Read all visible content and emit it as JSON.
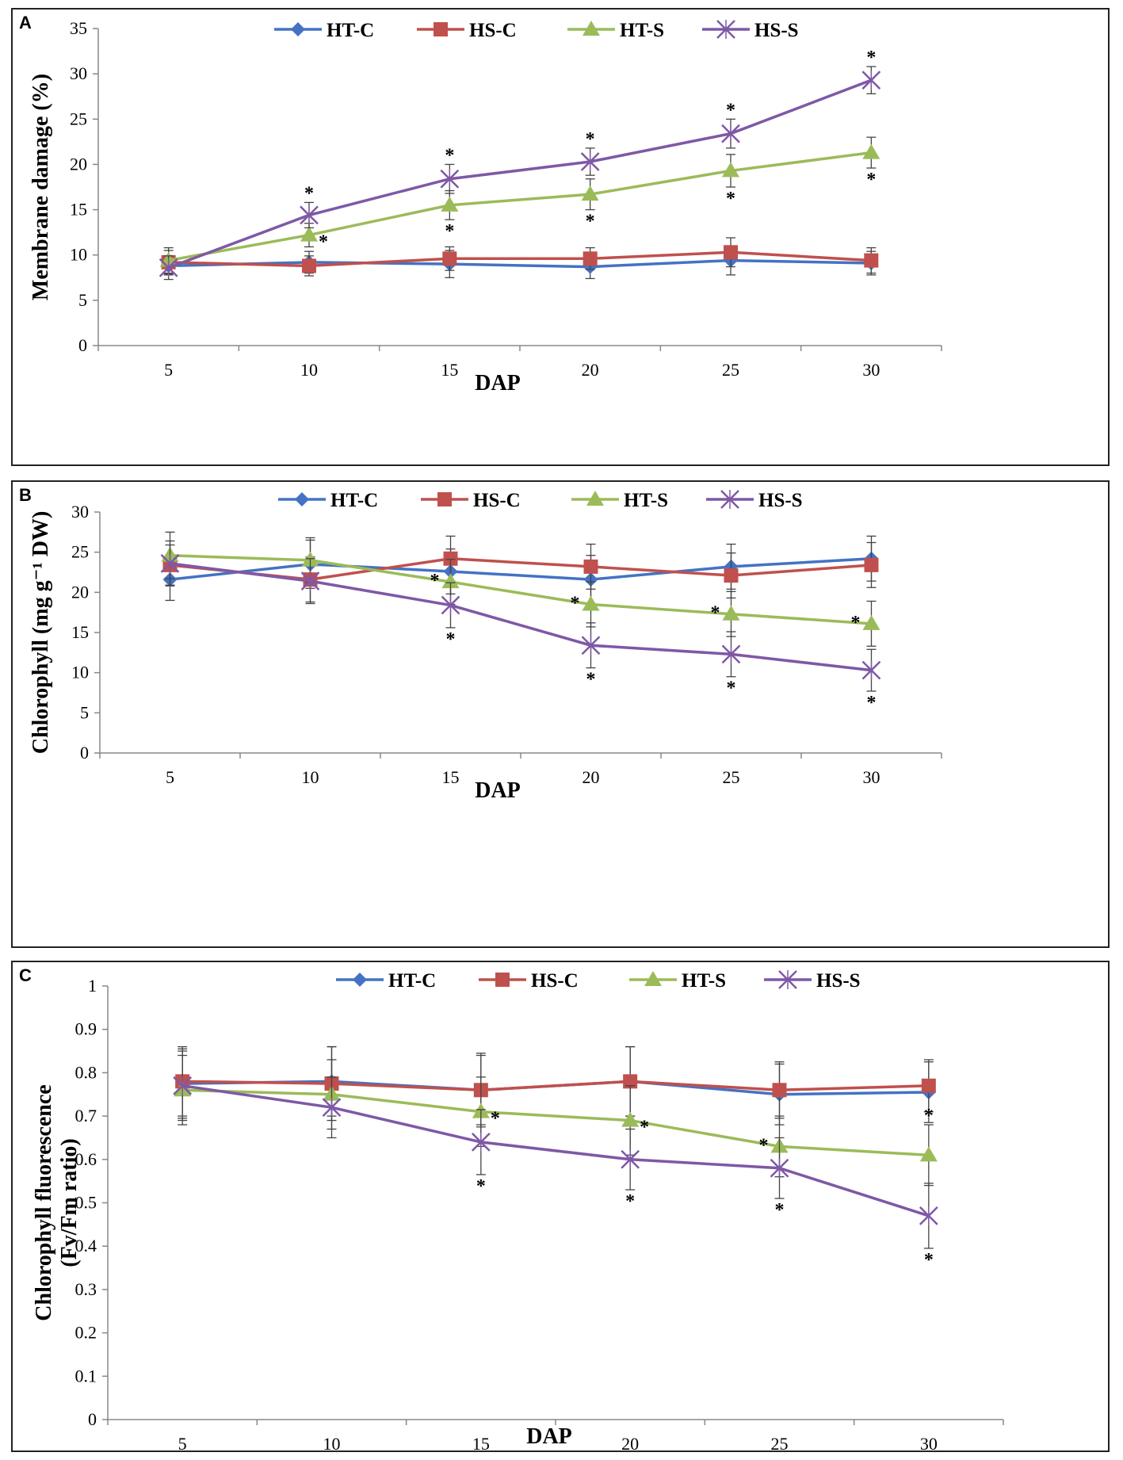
{
  "chart_data": [
    {
      "type": "line",
      "panel_label": "A",
      "ylabel": "Membrane damage (%)",
      "xlabel": "DAP",
      "categories": [
        "5",
        "10",
        "15",
        "20",
        "25",
        "30"
      ],
      "ylim": [
        0,
        35
      ],
      "yticks": [
        "0",
        "5",
        "10",
        "15",
        "20",
        "25",
        "30",
        "35"
      ],
      "legend_position": "top",
      "series": [
        {
          "name": "HT-C",
          "color": "#4472c4",
          "marker": "diamond",
          "values": [
            8.8,
            9.2,
            9.0,
            8.7,
            9.4,
            9.1
          ],
          "errors": [
            1.0,
            1.2,
            1.5,
            1.3,
            1.6,
            1.3
          ]
        },
        {
          "name": "HS-C",
          "color": "#c0504d",
          "marker": "square",
          "values": [
            9.2,
            8.8,
            9.6,
            9.6,
            10.3,
            9.4
          ],
          "errors": [
            1.3,
            1.1,
            1.3,
            1.2,
            1.6,
            1.4
          ]
        },
        {
          "name": "HT-S",
          "color": "#9bbb59",
          "marker": "triangle",
          "values": [
            9.4,
            12.2,
            15.5,
            16.7,
            19.3,
            21.3
          ],
          "errors": [
            1.4,
            1.3,
            1.6,
            1.7,
            1.8,
            1.7
          ]
        },
        {
          "name": "HS-S",
          "color": "#7f58a6",
          "marker": "x",
          "values": [
            8.6,
            14.4,
            18.4,
            20.3,
            23.4,
            29.3
          ],
          "errors": [
            1.3,
            1.4,
            1.6,
            1.5,
            1.6,
            1.5
          ]
        }
      ],
      "significance": [
        {
          "series": "HS-S",
          "index": 1,
          "pos": "above",
          "text": "*"
        },
        {
          "series": "HS-S",
          "index": 2,
          "pos": "above",
          "text": "*"
        },
        {
          "series": "HS-S",
          "index": 3,
          "pos": "above",
          "text": "*"
        },
        {
          "series": "HS-S",
          "index": 4,
          "pos": "above",
          "text": "*"
        },
        {
          "series": "HS-S",
          "index": 5,
          "pos": "above",
          "text": "*"
        },
        {
          "series": "HT-S",
          "index": 1,
          "pos": "right",
          "text": "*"
        },
        {
          "series": "HT-S",
          "index": 2,
          "pos": "below",
          "text": "*"
        },
        {
          "series": "HT-S",
          "index": 3,
          "pos": "below",
          "text": "*"
        },
        {
          "series": "HT-S",
          "index": 4,
          "pos": "below",
          "text": "*"
        },
        {
          "series": "HT-S",
          "index": 5,
          "pos": "below",
          "text": "*"
        }
      ]
    },
    {
      "type": "line",
      "panel_label": "B",
      "ylabel": "Chlorophyll (mg g⁻¹ DW)",
      "xlabel": "DAP",
      "categories": [
        "5",
        "10",
        "15",
        "20",
        "25",
        "30"
      ],
      "ylim": [
        0,
        30
      ],
      "yticks": [
        "0",
        "5",
        "10",
        "15",
        "20",
        "25",
        "30"
      ],
      "legend_position": "top",
      "series": [
        {
          "name": "HT-C",
          "color": "#4472c4",
          "marker": "diamond",
          "values": [
            21.6,
            23.5,
            22.6,
            21.6,
            23.2,
            24.2
          ],
          "errors": [
            2.6,
            3.0,
            2.8,
            3.0,
            2.8,
            2.8
          ]
        },
        {
          "name": "HS-C",
          "color": "#c0504d",
          "marker": "square",
          "values": [
            23.4,
            21.6,
            24.2,
            23.2,
            22.1,
            23.4
          ],
          "errors": [
            2.5,
            2.8,
            2.8,
            2.8,
            2.8,
            2.8
          ]
        },
        {
          "name": "HT-S",
          "color": "#9bbb59",
          "marker": "triangle",
          "values": [
            24.6,
            24.0,
            21.3,
            18.5,
            17.3,
            16.1
          ],
          "errors": [
            2.9,
            2.8,
            2.8,
            2.8,
            2.8,
            2.8
          ]
        },
        {
          "name": "HS-S",
          "color": "#7f58a6",
          "marker": "x",
          "values": [
            23.6,
            21.4,
            18.4,
            13.4,
            12.3,
            10.3
          ],
          "errors": [
            2.8,
            2.8,
            2.8,
            2.8,
            2.8,
            2.6
          ]
        }
      ],
      "significance": [
        {
          "series": "HT-S",
          "index": 2,
          "pos": "left",
          "text": "*"
        },
        {
          "series": "HT-S",
          "index": 3,
          "pos": "left",
          "text": "*"
        },
        {
          "series": "HT-S",
          "index": 4,
          "pos": "left",
          "text": "*"
        },
        {
          "series": "HT-S",
          "index": 5,
          "pos": "left",
          "text": "*"
        },
        {
          "series": "HS-S",
          "index": 2,
          "pos": "below",
          "text": "*"
        },
        {
          "series": "HS-S",
          "index": 3,
          "pos": "below",
          "text": "*"
        },
        {
          "series": "HS-S",
          "index": 4,
          "pos": "below",
          "text": "*"
        },
        {
          "series": "HS-S",
          "index": 5,
          "pos": "below",
          "text": "*"
        }
      ]
    },
    {
      "type": "line",
      "panel_label": "C",
      "ylabel": "Chlorophyll fluorescence",
      "ylabel2": "(Fv/Fm ratio)",
      "xlabel": "DAP",
      "categories": [
        "5",
        "10",
        "15",
        "20",
        "25",
        "30"
      ],
      "ylim": [
        0,
        1
      ],
      "yticks": [
        "0",
        "0.1",
        "0.2",
        "0.3",
        "0.4",
        "0.5",
        "0.6",
        "0.7",
        "0.8",
        "0.9",
        "1"
      ],
      "legend_position": "top",
      "series": [
        {
          "name": "HT-C",
          "color": "#4472c4",
          "marker": "diamond",
          "values": [
            0.775,
            0.78,
            0.76,
            0.78,
            0.75,
            0.755
          ],
          "errors": [
            0.08,
            0.08,
            0.08,
            0.08,
            0.07,
            0.07
          ]
        },
        {
          "name": "HS-C",
          "color": "#c0504d",
          "marker": "square",
          "values": [
            0.78,
            0.775,
            0.76,
            0.78,
            0.76,
            0.77
          ],
          "errors": [
            0.08,
            0.085,
            0.085,
            0.08,
            0.065,
            0.06
          ]
        },
        {
          "name": "HT-S",
          "color": "#9bbb59",
          "marker": "triangle",
          "values": [
            0.76,
            0.75,
            0.71,
            0.69,
            0.63,
            0.61
          ],
          "errors": [
            0.08,
            0.08,
            0.08,
            0.08,
            0.07,
            0.07
          ]
        },
        {
          "name": "HS-S",
          "color": "#7f58a6",
          "marker": "x",
          "values": [
            0.77,
            0.72,
            0.64,
            0.6,
            0.58,
            0.47
          ],
          "errors": [
            0.08,
            0.07,
            0.075,
            0.07,
            0.07,
            0.075
          ]
        }
      ],
      "significance": [
        {
          "series": "HT-S",
          "index": 2,
          "pos": "right",
          "text": "*"
        },
        {
          "series": "HT-S",
          "index": 3,
          "pos": "right",
          "text": "*"
        },
        {
          "series": "HT-S",
          "index": 4,
          "pos": "left",
          "text": "*"
        },
        {
          "series": "HT-S",
          "index": 5,
          "pos": "above",
          "text": "*"
        },
        {
          "series": "HS-S",
          "index": 2,
          "pos": "below",
          "text": "*"
        },
        {
          "series": "HS-S",
          "index": 3,
          "pos": "below",
          "text": "*"
        },
        {
          "series": "HS-S",
          "index": 4,
          "pos": "below",
          "text": "*"
        },
        {
          "series": "HS-S",
          "index": 5,
          "pos": "below",
          "text": "*"
        }
      ]
    }
  ]
}
